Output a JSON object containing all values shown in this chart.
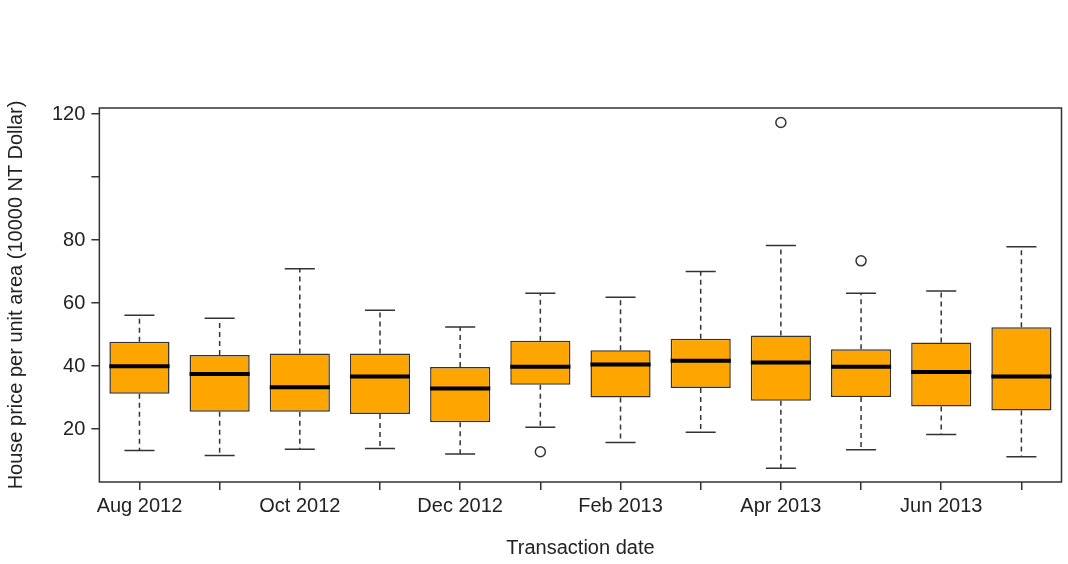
{
  "chart_data": {
    "type": "box",
    "xlabel": "Transaction date",
    "ylabel": "House price per unit area (10000 NT Dollar)",
    "categories": [
      "Aug 2012",
      null,
      "Oct 2012",
      null,
      "Dec 2012",
      null,
      "Feb 2013",
      null,
      "Apr 2013",
      null,
      "Jun 2013",
      null
    ],
    "color": "#ffa500",
    "ylim": [
      3.2,
      121.9
    ],
    "yticks": [
      20,
      40,
      60,
      80,
      {
        "value": 100,
        "label": null
      },
      120
    ],
    "grid": false,
    "legend": false,
    "boxes": [
      {
        "low": 13.2,
        "q1": 31.2,
        "median": 39.9,
        "q3": 47.7,
        "high": 56.1
      },
      {
        "low": 11.6,
        "q1": 25.5,
        "median": 37.5,
        "q3": 43.5,
        "high": 55.2
      },
      {
        "low": 13.6,
        "q1": 25.5,
        "median": 33.3,
        "q3": 44.0,
        "high": 70.9
      },
      {
        "low": 13.8,
        "q1": 24.8,
        "median": 36.7,
        "q3": 44.0,
        "high": 57.7
      },
      {
        "low": 12.1,
        "q1": 22.2,
        "median": 32.9,
        "q3": 39.7,
        "high": 52.4
      },
      {
        "low": 20.6,
        "q1": 34.1,
        "median": 39.8,
        "q3": 48.0,
        "high": 63.1,
        "outliers": [
          12.8
        ]
      },
      {
        "low": 15.7,
        "q1": 30.0,
        "median": 40.5,
        "q3": 45.0,
        "high": 61.8
      },
      {
        "low": 19.0,
        "q1": 33.0,
        "median": 41.7,
        "q3": 48.7,
        "high": 70.0
      },
      {
        "low": 7.6,
        "q1": 29.0,
        "median": 41.1,
        "q3": 49.7,
        "high": 78.3,
        "outliers": [
          117.3
        ]
      },
      {
        "low": 13.4,
        "q1": 30.2,
        "median": 39.8,
        "q3": 45.3,
        "high": 63.1,
        "outliers": [
          73.4
        ]
      },
      {
        "low": 18.3,
        "q1": 27.2,
        "median": 38.1,
        "q3": 47.5,
        "high": 63.8
      },
      {
        "low": 11.2,
        "q1": 25.9,
        "median": 36.7,
        "q3": 52.3,
        "high": 77.9
      }
    ]
  }
}
